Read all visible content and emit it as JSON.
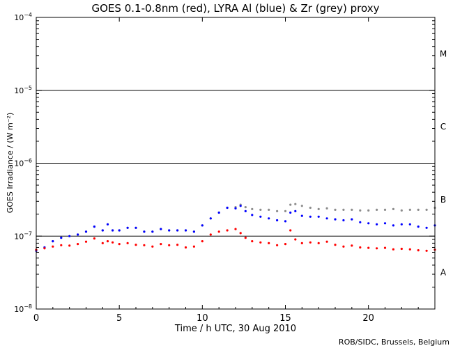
{
  "chart_data": {
    "type": "scatter",
    "title": "GOES 0.1-0.8nm (red), LYRA Al (blue) & Zr (grey) proxy",
    "xlabel": "Time / h UTC, 30 Aug 2010",
    "ylabel": "GOES Irradiance / (W m⁻²)",
    "credit": "ROB/SIDC, Brussels, Belgium",
    "xlim": [
      0,
      24
    ],
    "ylim": [
      1e-08,
      0.0001
    ],
    "yscale": "log",
    "x_ticks": [
      0,
      5,
      10,
      15,
      20
    ],
    "x_tick_labels": [
      "0",
      "5",
      "10",
      "15",
      "20"
    ],
    "y_ticks": [
      1e-08,
      1e-07,
      1e-06,
      1e-05,
      0.0001
    ],
    "y_tick_bases": [
      "10",
      "10",
      "10",
      "10",
      "10"
    ],
    "y_tick_exps": [
      "−8",
      "−7",
      "−6",
      "−5",
      "−4"
    ],
    "reference_lines": [
      1e-07,
      1e-06,
      1e-05
    ],
    "flare_classes": [
      {
        "label": "M",
        "value": 3.16e-05
      },
      {
        "label": "C",
        "value": 3.16e-06
      },
      {
        "label": "B",
        "value": 3.16e-07
      },
      {
        "label": "A",
        "value": 3.16e-08
      }
    ],
    "colors": {
      "red": "#ff0000",
      "blue": "#0000ff",
      "grey": "#8c8c8c",
      "axis": "#000000"
    },
    "series": [
      {
        "color": "grey",
        "x": [
          0.0,
          0.5,
          1.0,
          1.5,
          2.0,
          2.5,
          3.0,
          3.5,
          4.0,
          4.3,
          4.6,
          5.0,
          5.5,
          6.0,
          6.5,
          7.0,
          7.5,
          8.0,
          8.5,
          9.0,
          9.5,
          10.0,
          10.5,
          11.0,
          11.5,
          12.0,
          12.3,
          12.6,
          13.0,
          13.5,
          14.0,
          14.5,
          15.0,
          15.3,
          15.6,
          16.0,
          16.5,
          17.0,
          17.5,
          18.0,
          18.5,
          19.0,
          19.5,
          20.0,
          20.5,
          21.0,
          21.5,
          22.0,
          22.5,
          23.0,
          23.5,
          24.0
        ],
        "values": [
          6.3e-08,
          7e-08,
          8.5e-08,
          9.5e-08,
          1e-07,
          1.05e-07,
          1.15e-07,
          1.35e-07,
          1.2e-07,
          1.45e-07,
          1.2e-07,
          1.2e-07,
          1.3e-07,
          1.3e-07,
          1.15e-07,
          1.15e-07,
          1.25e-07,
          1.2e-07,
          1.2e-07,
          1.2e-07,
          1.15e-07,
          1.4e-07,
          1.75e-07,
          2.1e-07,
          2.45e-07,
          2.5e-07,
          2.7e-07,
          2.5e-07,
          2.35e-07,
          2.3e-07,
          2.3e-07,
          2.2e-07,
          2.2e-07,
          2.7e-07,
          2.75e-07,
          2.6e-07,
          2.45e-07,
          2.35e-07,
          2.4e-07,
          2.3e-07,
          2.3e-07,
          2.3e-07,
          2.25e-07,
          2.25e-07,
          2.3e-07,
          2.3e-07,
          2.35e-07,
          2.25e-07,
          2.3e-07,
          2.3e-07,
          2.3e-07,
          2.45e-07
        ]
      },
      {
        "color": "blue",
        "x": [
          0.0,
          0.5,
          1.0,
          1.5,
          2.0,
          2.5,
          3.0,
          3.5,
          4.0,
          4.3,
          4.6,
          5.0,
          5.5,
          6.0,
          6.5,
          7.0,
          7.5,
          8.0,
          8.5,
          9.0,
          9.5,
          10.0,
          10.5,
          11.0,
          11.5,
          12.0,
          12.3,
          12.6,
          13.0,
          13.5,
          14.0,
          14.5,
          15.0,
          15.3,
          15.6,
          16.0,
          16.5,
          17.0,
          17.5,
          18.0,
          18.5,
          19.0,
          19.5,
          20.0,
          20.5,
          21.0,
          21.5,
          22.0,
          22.5,
          23.0,
          23.5,
          24.0
        ],
        "values": [
          6.3e-08,
          7e-08,
          8.5e-08,
          9.5e-08,
          1e-07,
          1.05e-07,
          1.15e-07,
          1.35e-07,
          1.2e-07,
          1.45e-07,
          1.2e-07,
          1.2e-07,
          1.3e-07,
          1.3e-07,
          1.15e-07,
          1.15e-07,
          1.25e-07,
          1.2e-07,
          1.2e-07,
          1.2e-07,
          1.15e-07,
          1.4e-07,
          1.75e-07,
          2.1e-07,
          2.45e-07,
          2.4e-07,
          2.6e-07,
          2.2e-07,
          1.95e-07,
          1.85e-07,
          1.75e-07,
          1.65e-07,
          1.6e-07,
          2.1e-07,
          2.2e-07,
          1.9e-07,
          1.85e-07,
          1.85e-07,
          1.75e-07,
          1.7e-07,
          1.65e-07,
          1.7e-07,
          1.55e-07,
          1.5e-07,
          1.45e-07,
          1.5e-07,
          1.4e-07,
          1.45e-07,
          1.45e-07,
          1.35e-07,
          1.3e-07,
          1.4e-07
        ]
      },
      {
        "color": "red",
        "x": [
          0.0,
          0.5,
          1.0,
          1.5,
          2.0,
          2.5,
          3.0,
          3.5,
          4.0,
          4.3,
          4.6,
          5.0,
          5.5,
          6.0,
          6.5,
          7.0,
          7.5,
          8.0,
          8.5,
          9.0,
          9.5,
          10.0,
          10.5,
          11.0,
          11.5,
          12.0,
          12.3,
          12.6,
          13.0,
          13.5,
          14.0,
          14.5,
          15.0,
          15.3,
          15.6,
          16.0,
          16.5,
          17.0,
          17.5,
          18.0,
          18.5,
          19.0,
          19.5,
          20.0,
          20.5,
          21.0,
          21.5,
          22.0,
          22.5,
          23.0,
          23.5,
          24.0
        ],
        "values": [
          6.5e-08,
          6.8e-08,
          7.2e-08,
          7.5e-08,
          7.4e-08,
          7.8e-08,
          8.4e-08,
          9.3e-08,
          8e-08,
          8.5e-08,
          8.2e-08,
          7.8e-08,
          8e-08,
          7.6e-08,
          7.5e-08,
          7.2e-08,
          7.8e-08,
          7.5e-08,
          7.6e-08,
          7e-08,
          7.2e-08,
          8.5e-08,
          1.05e-07,
          1.15e-07,
          1.2e-07,
          1.25e-07,
          1.1e-07,
          9.5e-08,
          8.5e-08,
          8.2e-08,
          8e-08,
          7.5e-08,
          7.8e-08,
          1.2e-07,
          9e-08,
          8e-08,
          8.2e-08,
          8e-08,
          8.4e-08,
          7.6e-08,
          7.2e-08,
          7.4e-08,
          7e-08,
          6.9e-08,
          6.8e-08,
          6.9e-08,
          6.6e-08,
          6.7e-08,
          6.6e-08,
          6.4e-08,
          6.3e-08,
          6.5e-08
        ]
      }
    ]
  }
}
